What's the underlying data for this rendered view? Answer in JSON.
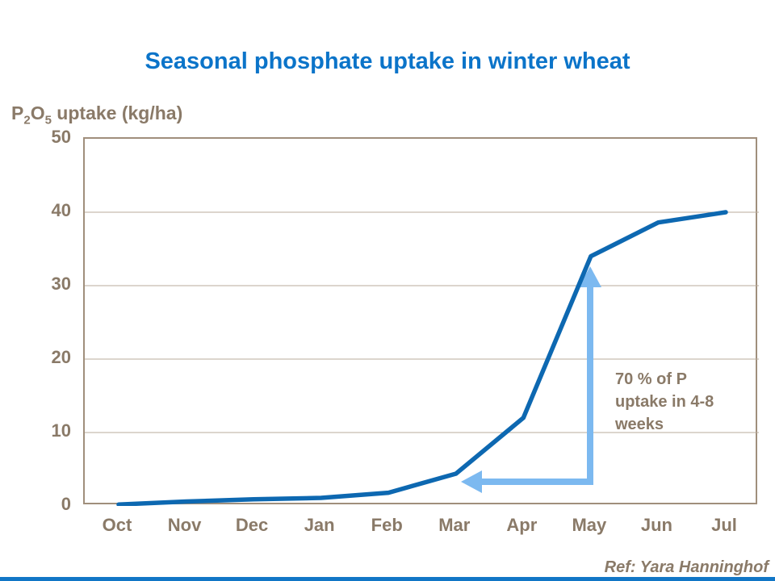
{
  "title": "Seasonal phosphate uptake in winter wheat",
  "y_axis_label": {
    "p": "P",
    "sub2": "2",
    "o": "O",
    "sub5": "5",
    "rest": " uptake (kg/ha)"
  },
  "annotation": {
    "line1": "70 % of P",
    "line2": "uptake in 4-8",
    "line3": "weeks"
  },
  "ref_note": "Ref: Yara Hanninghof",
  "colors": {
    "title_blue": "#0b74c9",
    "curve_blue": "#0d68b1",
    "arrow_blue": "#7cb9f0",
    "text_brown": "#8a7a68",
    "grid": "#b8ab9b",
    "axis_border": "#a08f7c",
    "footer_bar": "#1176c6"
  },
  "chart_data": {
    "type": "line",
    "categories": [
      "Oct",
      "Nov",
      "Dec",
      "Jan",
      "Feb",
      "Mar",
      "Apr",
      "May",
      "Jun",
      "Jul"
    ],
    "series": [
      {
        "name": "P2O5 uptake (kg/ha)",
        "values": [
          0.2,
          0.6,
          0.9,
          1.1,
          1.8,
          4.4,
          12,
          34,
          38.6,
          40
        ]
      }
    ],
    "title": "Seasonal phosphate uptake in winter wheat",
    "xlabel": "",
    "ylabel": "P2O5 uptake (kg/ha)",
    "ylim": [
      0,
      50
    ],
    "yticks": [
      0,
      10,
      20,
      30,
      40,
      50
    ],
    "grid": "horizontal",
    "legend": "none",
    "annotation_text": "70 % of P uptake in 4-8 weeks",
    "annotation_meaning": "arrow spans Mar to May on the curve, where ~70% of P uptake occurs in 4-8 weeks"
  }
}
